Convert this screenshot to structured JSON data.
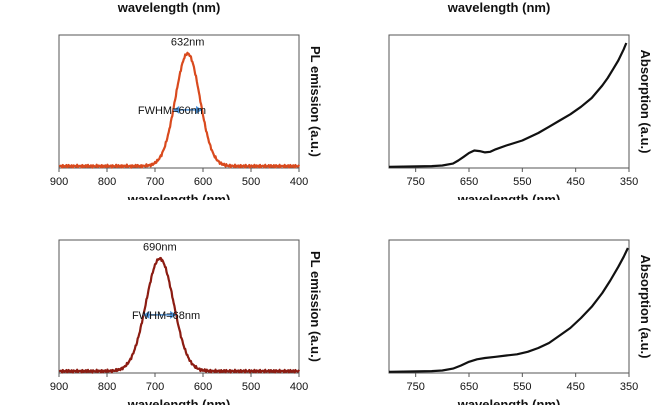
{
  "top_labels": {
    "left": "wavelength (nm)",
    "right": "wavelength (nm)"
  },
  "chart_data": [
    {
      "type": "line",
      "xlabel": "wavelength (nm)",
      "ylabel": "Absorption (a.u.)",
      "xlim": [
        350,
        800
      ],
      "xticks": [
        350,
        450,
        550,
        650,
        750
      ],
      "series": [
        {
          "color": "#111111",
          "points": [
            [
              800,
              0.01
            ],
            [
              760,
              0.012
            ],
            [
              720,
              0.015
            ],
            [
              700,
              0.02
            ],
            [
              680,
              0.035
            ],
            [
              670,
              0.06
            ],
            [
              660,
              0.09
            ],
            [
              650,
              0.12
            ],
            [
              640,
              0.14
            ],
            [
              630,
              0.135
            ],
            [
              620,
              0.125
            ],
            [
              610,
              0.13
            ],
            [
              600,
              0.15
            ],
            [
              580,
              0.18
            ],
            [
              550,
              0.22
            ],
            [
              520,
              0.28
            ],
            [
              500,
              0.33
            ],
            [
              480,
              0.38
            ],
            [
              460,
              0.43
            ],
            [
              440,
              0.49
            ],
            [
              420,
              0.56
            ],
            [
              400,
              0.66
            ],
            [
              390,
              0.72
            ],
            [
              380,
              0.79
            ],
            [
              370,
              0.86
            ],
            [
              360,
              0.95
            ],
            [
              355,
              1.0
            ]
          ]
        }
      ]
    },
    {
      "type": "line",
      "xlabel": "wavelength (nm)",
      "ylabel": "PL emission (a.u.)",
      "xlim": [
        400,
        900
      ],
      "xticks": [
        400,
        500,
        600,
        700,
        800,
        900
      ],
      "peak_label": "632nm",
      "fwhm_label": "FWHM=60nm",
      "series": [
        {
          "color": "#d94a1e",
          "peak": 632,
          "fwhm": 60
        }
      ]
    },
    {
      "type": "line",
      "xlabel": "wavelength (nm)",
      "ylabel": "Absorption (a.u.)",
      "xlim": [
        350,
        800
      ],
      "xticks": [
        350,
        450,
        550,
        650,
        750
      ],
      "series": [
        {
          "color": "#111111",
          "points": [
            [
              800,
              0.01
            ],
            [
              760,
              0.012
            ],
            [
              720,
              0.015
            ],
            [
              700,
              0.02
            ],
            [
              680,
              0.035
            ],
            [
              665,
              0.06
            ],
            [
              650,
              0.09
            ],
            [
              635,
              0.11
            ],
            [
              620,
              0.12
            ],
            [
              600,
              0.13
            ],
            [
              580,
              0.14
            ],
            [
              560,
              0.15
            ],
            [
              540,
              0.17
            ],
            [
              520,
              0.2
            ],
            [
              500,
              0.24
            ],
            [
              480,
              0.3
            ],
            [
              460,
              0.36
            ],
            [
              440,
              0.44
            ],
            [
              420,
              0.53
            ],
            [
              400,
              0.64
            ],
            [
              385,
              0.74
            ],
            [
              370,
              0.85
            ],
            [
              360,
              0.93
            ],
            [
              352,
              1.0
            ]
          ]
        }
      ]
    },
    {
      "type": "line",
      "xlabel": "wavelength (nm)",
      "ylabel": "PL emission (a.u.)",
      "xlim": [
        400,
        900
      ],
      "xticks": [
        400,
        500,
        600,
        700,
        800,
        900
      ],
      "peak_label": "690nm",
      "fwhm_label": "FWHM=68nm",
      "series": [
        {
          "color": "#8c1c12",
          "peak": 690,
          "fwhm": 68
        }
      ]
    }
  ]
}
